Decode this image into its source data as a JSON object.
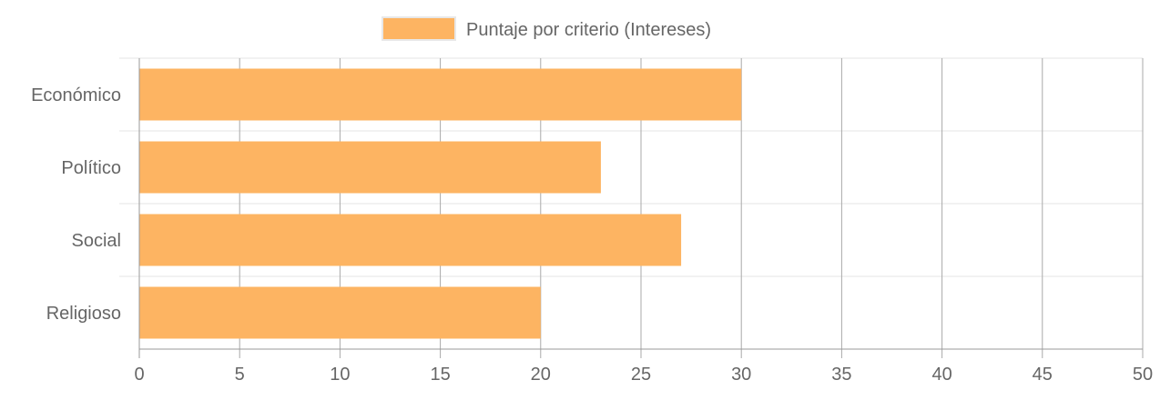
{
  "chart_data": {
    "type": "bar",
    "orientation": "horizontal",
    "categories": [
      "Económico",
      "Político",
      "Social",
      "Religioso"
    ],
    "series": [
      {
        "name": "Puntaje por criterio (Intereses)",
        "values": [
          30,
          23,
          27,
          20
        ],
        "color": "#fdb462"
      }
    ],
    "xlim": [
      0,
      50
    ],
    "x_ticks": [
      0,
      5,
      10,
      15,
      20,
      25,
      30,
      35,
      40,
      45,
      50
    ],
    "legend_position": "top-center",
    "grid": true,
    "colors": {
      "bar": "#fdb462",
      "grid": "#e6e6e6",
      "vgrid": "#a9a9a9",
      "axis": "#999999",
      "text": "#666666"
    }
  }
}
